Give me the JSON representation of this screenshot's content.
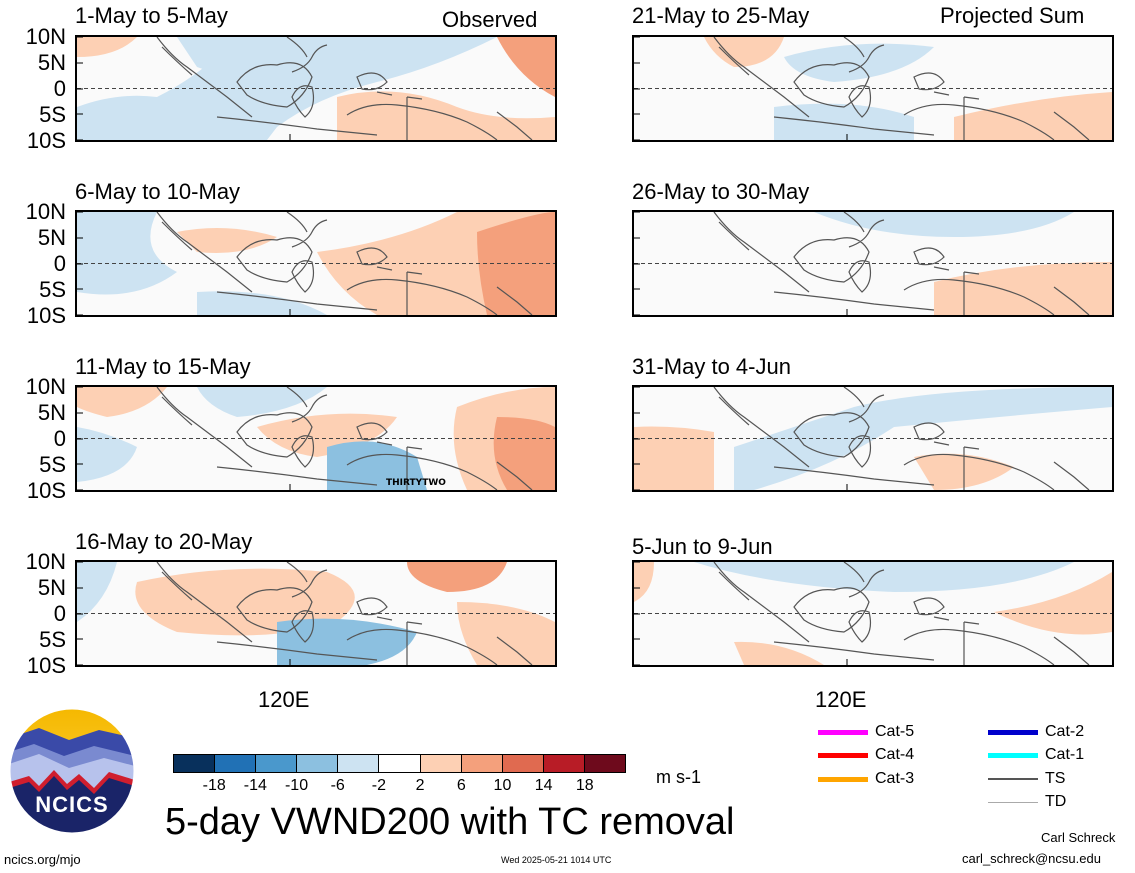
{
  "column_labels": {
    "left": "Observed",
    "right": "Projected Sum"
  },
  "panels_left": [
    {
      "title": "1-May to 5-May"
    },
    {
      "title": "6-May to 10-May"
    },
    {
      "title": "11-May to 15-May",
      "annotation": "THIRTYTWO"
    },
    {
      "title": "16-May to 20-May"
    }
  ],
  "panels_right": [
    {
      "title": "21-May to 25-May"
    },
    {
      "title": "26-May to 30-May"
    },
    {
      "title": "31-May to 4-Jun"
    },
    {
      "title": "5-Jun to 9-Jun"
    }
  ],
  "lat_labels": [
    "10N",
    "5N",
    "0",
    "5S",
    "10S"
  ],
  "lon_label": "120E",
  "colorbar": {
    "tick_labels": [
      "-18",
      "-14",
      "-10",
      "-6",
      "-2",
      "2",
      "6",
      "10",
      "14",
      "18"
    ],
    "colors": [
      "#08305c",
      "#2171b5",
      "#4a98cc",
      "#8cc0e0",
      "#cde3f2",
      "#ffffff",
      "#fdd0b4",
      "#f4a07c",
      "#e06a50",
      "#b81c26",
      "#6e0a1c"
    ],
    "units": "m s-1"
  },
  "legend": [
    {
      "label": "Cat-5",
      "color": "#ff00ff"
    },
    {
      "label": "Cat-4",
      "color": "#ff0000"
    },
    {
      "label": "Cat-3",
      "color": "#ffa500"
    },
    {
      "label": "Cat-2",
      "color": "#0000cc"
    },
    {
      "label": "Cat-1",
      "color": "#00ffff"
    },
    {
      "label": "TS",
      "color": "#555555"
    },
    {
      "label": "TD",
      "color": "#aaaaaa"
    }
  ],
  "main_title": "5-day VWND200 with TC removal",
  "logo_text": "NCICS",
  "footer": {
    "website": "ncics.org/mjo",
    "timestamp": "Wed 2025-05-21 1014 UTC",
    "author": "Carl Schreck",
    "email": "carl_schreck@ncsu.edu"
  }
}
